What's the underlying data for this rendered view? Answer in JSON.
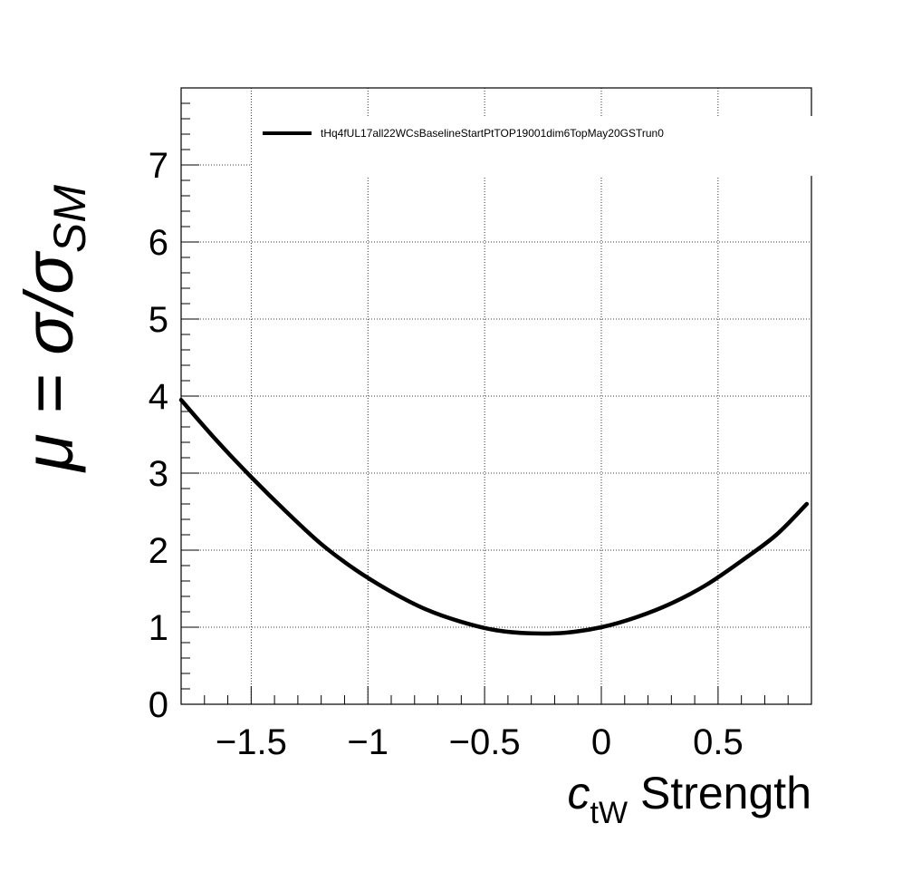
{
  "chart_data": {
    "type": "line",
    "xlabel": {
      "main": "c",
      "sub": "tW",
      "suffix": " Strength"
    },
    "ylabel": {
      "prefix": "μ = σ/σ",
      "sub": "SM"
    },
    "xlim": [
      -1.8,
      0.9
    ],
    "ylim": [
      0,
      8
    ],
    "x_ticks": [
      -1.5,
      -1,
      -0.5,
      0,
      0.5
    ],
    "x_tick_labels": [
      "−1.5",
      "−1",
      "−0.5",
      "0",
      "0.5"
    ],
    "y_ticks": [
      0,
      1,
      2,
      3,
      4,
      5,
      6,
      7
    ],
    "y_tick_labels": [
      "0",
      "1",
      "2",
      "3",
      "4",
      "5",
      "6",
      "7"
    ],
    "grid": true,
    "legend_position": "top-left",
    "series": [
      {
        "name": "tHq4fUL17all22WCsBaselineStartPtTOP19001dim6TopMay20GSTrun0",
        "color": "#000000",
        "x": [
          -1.8,
          -1.65,
          -1.5,
          -1.35,
          -1.2,
          -1.05,
          -0.9,
          -0.75,
          -0.6,
          -0.45,
          -0.3,
          -0.15,
          0.0,
          0.15,
          0.3,
          0.45,
          0.6,
          0.75,
          0.88
        ],
        "y": [
          3.95,
          3.43,
          2.95,
          2.5,
          2.08,
          1.74,
          1.46,
          1.23,
          1.07,
          0.96,
          0.92,
          0.93,
          1.0,
          1.13,
          1.31,
          1.55,
          1.86,
          2.2,
          2.6
        ]
      }
    ]
  }
}
